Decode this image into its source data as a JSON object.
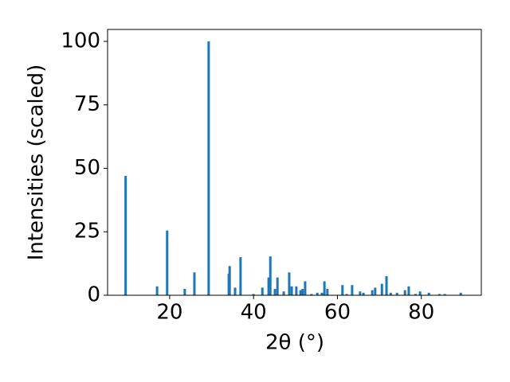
{
  "chart_data": {
    "type": "bar",
    "xlabel": "2θ (°)",
    "ylabel": "Intensities (scaled)",
    "x": [
      9.5,
      17.0,
      19.4,
      23.6,
      25.9,
      29.3,
      34.1,
      34.3,
      35.6,
      36.9,
      40.0,
      42.1,
      43.6,
      44.0,
      45.1,
      45.7,
      47.2,
      48.5,
      49.1,
      50.2,
      51.2,
      51.7,
      52.3,
      53.8,
      55.2,
      56.3,
      56.9,
      57.6,
      61.2,
      62.2,
      63.5,
      65.4,
      66.2,
      68.3,
      69.0,
      70.6,
      71.7,
      72.7,
      74.2,
      76.1,
      77.0,
      78.6,
      79.7,
      81.8,
      84.3,
      85.6,
      89.4
    ],
    "values": [
      47,
      3.5,
      25.5,
      2.5,
      9,
      100,
      8.5,
      11.5,
      3,
      15,
      0.5,
      3,
      7,
      15.3,
      2.5,
      7,
      1.5,
      9,
      3.5,
      3.5,
      2,
      2.5,
      5.5,
      0.5,
      1,
      1,
      5.5,
      2.5,
      4,
      0.5,
      4,
      1.5,
      1,
      2,
      3,
      4.5,
      7.5,
      1,
      1,
      2,
      3.5,
      0.5,
      1.5,
      1,
      0.5,
      0.5,
      1
    ],
    "color": "#1f77b4",
    "xlim": [
      5.2,
      94.3
    ],
    "xticks": [
      20,
      40,
      60,
      80
    ],
    "ylim": [
      0,
      104.7
    ],
    "yticks": [
      0,
      25,
      50,
      75,
      100
    ]
  }
}
